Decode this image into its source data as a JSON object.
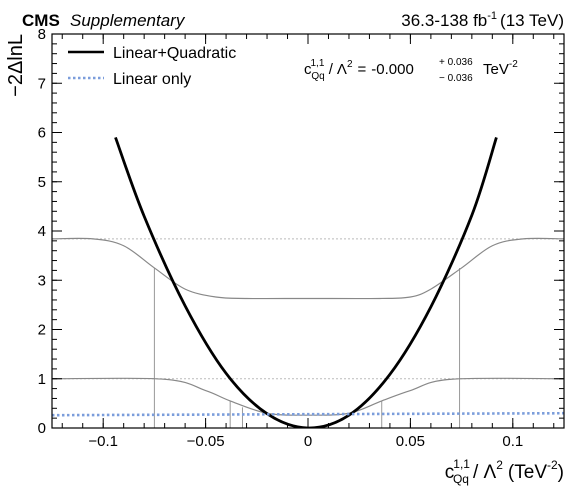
{
  "header": {
    "experiment": "CMS",
    "status": "Supplementary",
    "lumi_text": "36.3-138 fb",
    "lumi_sup": "-1",
    "energy": "(13 TeV)"
  },
  "result": {
    "c": "c",
    "sup": "1,1",
    "sub": "Qq",
    "slash": "/",
    "lambda": "Λ",
    "lambda_sup": "2",
    "eq": "=",
    "value": "-0.000",
    "err_up": "+ 0.036",
    "err_down": "− 0.036",
    "unit": "TeV",
    "unit_sup": "-2"
  },
  "axes": {
    "ylabel": "−2ΔlnL",
    "xlabel_c": "c",
    "xlabel_sup": "1,1",
    "xlabel_sub": "Qq",
    "xlabel_rest": "/ Λ",
    "xlabel_lsup": "2",
    "xlabel_unit": "(TeV",
    "xlabel_usup": "-2",
    "xlabel_close": ")",
    "xtick_labels": [
      "−0.1",
      "−0.05",
      "0",
      "0.05",
      "0.1"
    ],
    "ytick_labels": [
      "0",
      "1",
      "2",
      "3",
      "4",
      "5",
      "6",
      "7",
      "8"
    ]
  },
  "chart_data": {
    "type": "line",
    "title": "",
    "xlim": [
      -0.125,
      0.125
    ],
    "ylim": [
      0,
      8
    ],
    "xticks": [
      -0.1,
      -0.05,
      0,
      0.05,
      0.1
    ],
    "yticks": [
      0,
      1,
      2,
      3,
      4,
      5,
      6,
      7,
      8
    ],
    "legend_position": "top-left",
    "series": [
      {
        "name": "Linear+Quadratic",
        "color": "#000000",
        "style": "solid",
        "x": [
          -0.094,
          -0.08,
          -0.06,
          -0.04,
          -0.02,
          0.0,
          0.02,
          0.04,
          0.06,
          0.08,
          0.092
        ],
        "y": [
          5.9,
          4.3,
          2.48,
          1.11,
          0.29,
          0.0,
          0.26,
          1.09,
          2.46,
          4.32,
          5.9
        ]
      },
      {
        "name": "Linear only",
        "color": "#7b9ddb",
        "style": "dotted",
        "x": [
          -0.125,
          0.0,
          0.125
        ],
        "y": [
          0.26,
          0.28,
          0.3
        ]
      }
    ],
    "reference_curves": [
      {
        "level": 3.84,
        "color": "#888888",
        "x": [
          -0.125,
          -0.105,
          -0.09,
          -0.075,
          -0.06,
          -0.045,
          -0.03,
          0.0,
          0.035,
          0.05,
          0.06,
          0.075,
          0.09,
          0.105,
          0.125
        ],
        "y": [
          3.84,
          3.84,
          3.7,
          3.25,
          2.82,
          2.66,
          2.63,
          2.63,
          2.63,
          2.66,
          2.82,
          3.25,
          3.7,
          3.84,
          3.84
        ]
      },
      {
        "level": 1.0,
        "color": "#888888",
        "x": [
          -0.125,
          -0.07,
          -0.05,
          -0.038,
          -0.02,
          0.0,
          0.02,
          0.036,
          0.05,
          0.07,
          0.125
        ],
        "y": [
          1.0,
          0.99,
          0.76,
          0.55,
          0.3,
          0.26,
          0.3,
          0.55,
          0.76,
          0.99,
          1.0
        ]
      }
    ],
    "threshold_lines": [
      3.84,
      1.0
    ],
    "interval_markers_x": [
      -0.075,
      -0.038,
      -0.032,
      0.036,
      0.074
    ]
  }
}
